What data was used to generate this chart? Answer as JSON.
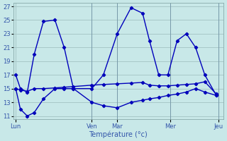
{
  "background_color": "#c8e8e8",
  "grid_color": "#a8c8c8",
  "line_color": "#0000bb",
  "marker_style": "D",
  "marker_size": 2.2,
  "line_width": 1.0,
  "xlabel": "Température (°c)",
  "ylim": [
    10.5,
    27.5
  ],
  "yticks": [
    11,
    13,
    15,
    17,
    19,
    21,
    23,
    25,
    27
  ],
  "day_x": [
    0,
    33,
    44,
    67,
    88
  ],
  "day_labels": [
    "Lun",
    "Ven",
    "Mar",
    "Mer",
    "Jeu"
  ],
  "s1_x": [
    0,
    2,
    5,
    8,
    12,
    17,
    21,
    25,
    33,
    38,
    44,
    50,
    55,
    58,
    62,
    66,
    70,
    74,
    78,
    82,
    87
  ],
  "s1_y": [
    17,
    15,
    14.5,
    20,
    24.8,
    25,
    21,
    15,
    15,
    17,
    23,
    26.8,
    26,
    22,
    17,
    17,
    22,
    23,
    21,
    17,
    14
  ],
  "s2_x": [
    0,
    2,
    5,
    8,
    12,
    17,
    21,
    25,
    33,
    38,
    44,
    50,
    55,
    58,
    62,
    66,
    70,
    74,
    78,
    82,
    87
  ],
  "s2_y": [
    15,
    14.8,
    14.6,
    15,
    15,
    15.1,
    15.2,
    15.3,
    15.5,
    15.6,
    15.7,
    15.8,
    15.9,
    15.5,
    15.4,
    15.4,
    15.5,
    15.6,
    15.7,
    16,
    14.2
  ],
  "s3_x": [
    0,
    2,
    5,
    8,
    12,
    17,
    21,
    25,
    33,
    38,
    44,
    50,
    55,
    58,
    62,
    66,
    70,
    74,
    78,
    82,
    87
  ],
  "s3_y": [
    15,
    12,
    11,
    11.5,
    13.5,
    15,
    15,
    15,
    13,
    12.5,
    12.2,
    13,
    13.3,
    13.5,
    13.7,
    14,
    14.2,
    14.5,
    15,
    14.5,
    14
  ],
  "ylabel_fontsize": 6.5,
  "xlabel_fontsize": 7,
  "tick_fontsize": 6,
  "tick_color": "#3355aa"
}
